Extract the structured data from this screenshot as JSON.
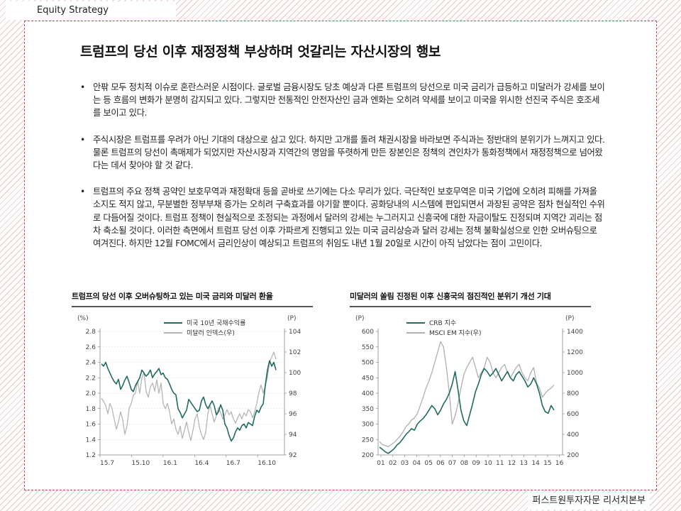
{
  "header": {
    "section": "Equity Strategy"
  },
  "footer": {
    "org": "퍼스트원투자자문 리서치본부"
  },
  "title": "트럼프의 당선 이후 재정정책 부상하며 엇갈리는 자산시장의 행보",
  "bullets": [
    "안팎 모두 정치적 이슈로 혼란스러운 시점이다. 글로벌 금융시장도 당초 예상과 다른 트럼프의 당선으로 미국 금리가 급등하고 미달러가 강세를 보이는 등 흐름의 변화가 분명히 감지되고 있다. 그렇지만 전통적인 안전자산인 금과 엔화는 오히려 약세를 보이고 미국을 위시한 선진국 주식은 호조세를 보이고 있다.",
    "주식시장은 트럼프를 우려가 아닌 기대의 대상으로 삼고 있다. 하지만 고개를 돌려 채권시장을 바라보면 주식과는 정반대의 분위기가 느껴지고 있다. 물론 트럼프의 당선이 촉매제가 되었지만 자산시장과 지역간의 명암을 뚜렷하게 만든 장본인은 정책의 견인차가 통화정책에서 재정정책으로 넘어왔다는 데서 찾아야 할 것 같다.",
    "트럼프의 주요 정책 공약인 보호무역과 재정확대 등을 곧바로 쓰기에는 다소 무리가 있다. 극단적인 보호무역은 미국 기업에 오히려 피해를 가져올 소지도 적지 않고, 무분별한 정부부채 증가는 오히려 구축효과를 야기할 뿐이다. 공화당내의 시스템에 편입되면서 과장된 공약은 점차 현실적인 수위로 다듬어질 것이다. 트럼프 정책이 현실적으로 조정되는 과정에서 달러의 강세는 누그러지고 신흥국에 대한 자금이탈도 진정되며 지역간 괴리는 점차 축소될 것이다. 이러한 측면에서 트럼프 당선 이후 가파르게 진행되고 있는 미국 금리상승과 달러 강세는 정책 불확실성으로 인한 오버슈팅으로 여겨진다. 하지만 12월 FOMC에서 금리인상이 예상되고 트럼프의 취임도 내년 1월 20일로 시간이 아직 남았다는 점이 고민이다."
  ],
  "chart_data": [
    {
      "type": "line",
      "title": "트럼프의 당선 이후 오버슈팅하고 있는 미국 금리와 미달러 환율",
      "x_ticks": [
        "15.7",
        "15.10",
        "16.1",
        "16.4",
        "16.7",
        "16.10"
      ],
      "y_left_unit": "(%)",
      "y_right_unit": "(P)",
      "y_left_ticks": [
        "1.2",
        "1.4",
        "1.6",
        "1.8",
        "2.0",
        "2.2",
        "2.4",
        "2.6",
        "2.8"
      ],
      "y_right_ticks": [
        "92",
        "94",
        "96",
        "98",
        "100",
        "102",
        "104"
      ],
      "ylim_left": [
        1.2,
        2.8
      ],
      "ylim_right": [
        92,
        104
      ],
      "grid": true,
      "legend_position": "top-center",
      "series": [
        {
          "name": "미국 10년 국채수익률",
          "axis": "left",
          "color": "#1f6b62",
          "values": [
            2.38,
            2.35,
            2.4,
            2.32,
            2.26,
            2.2,
            2.15,
            2.12,
            2.18,
            2.05,
            2.1,
            2.17,
            2.22,
            2.14,
            2.05,
            2.02,
            2.1,
            2.15,
            2.2,
            2.3,
            2.26,
            2.22,
            2.25,
            2.3,
            2.2,
            2.25,
            2.28,
            2.32,
            2.24,
            2.26,
            2.2,
            2.18,
            2.12,
            2.05,
            2.0,
            1.98,
            1.8,
            1.75,
            1.68,
            1.73,
            1.78,
            1.92,
            1.88,
            1.84,
            1.8,
            1.76,
            1.78,
            1.9,
            1.95,
            1.85,
            1.8,
            1.85,
            1.9,
            1.84,
            1.72,
            1.76,
            1.85,
            1.78,
            1.6,
            1.55,
            1.45,
            1.38,
            1.42,
            1.5,
            1.55,
            1.52,
            1.58,
            1.6,
            1.55,
            1.62,
            1.6,
            1.58,
            1.7,
            1.78,
            1.75,
            1.82,
            1.86,
            2.1,
            2.3,
            2.42,
            2.35,
            2.4,
            2.3
          ]
        },
        {
          "name": "미달러 인덱스(우)",
          "axis": "right",
          "color": "#b5b5b5",
          "values": [
            97.5,
            97.2,
            96.8,
            96.0,
            97.0,
            96.5,
            95.5,
            94.5,
            95.2,
            96.2,
            95.4,
            94.0,
            94.8,
            96.5,
            97.0,
            97.8,
            98.0,
            99.2,
            98.0,
            99.5,
            100.0,
            98.2,
            97.6,
            98.6,
            99.0,
            98.2,
            99.3,
            98.0,
            99.0,
            97.0,
            96.5,
            97.0,
            96.2,
            95.0,
            95.5,
            94.5,
            94.0,
            94.8,
            93.6,
            94.4,
            95.2,
            94.2,
            93.4,
            94.4,
            95.5,
            96.0,
            94.7,
            94.0,
            93.5,
            94.2,
            96.0,
            96.8,
            96.0,
            95.2,
            95.8,
            96.6,
            96.1,
            95.5,
            95.9,
            96.4,
            95.9,
            96.2,
            95.5,
            95.1,
            95.6,
            96.0,
            95.5,
            96.1,
            95.8,
            96.4,
            96.2,
            95.6,
            96.2,
            97.0,
            98.1,
            98.8,
            98.0,
            98.7,
            99.6,
            101.0,
            101.5,
            102.0,
            101.3
          ]
        }
      ]
    },
    {
      "type": "line",
      "title": "미달러의 쏠림 진정된 이후 신흥국의 점진적인 분위기 개선 기대",
      "x_ticks": [
        "01",
        "02",
        "03",
        "04",
        "05",
        "06",
        "07",
        "08",
        "09",
        "10",
        "11",
        "12",
        "13",
        "14",
        "15",
        "16"
      ],
      "y_left_unit": "(P)",
      "y_right_unit": "(P)",
      "y_left_ticks": [
        "200",
        "250",
        "300",
        "350",
        "400",
        "450",
        "500",
        "550",
        "600"
      ],
      "y_right_ticks": [
        "200",
        "400",
        "600",
        "800",
        "1000",
        "1200",
        "1400"
      ],
      "ylim_left": [
        200,
        600
      ],
      "ylim_right": [
        200,
        1400
      ],
      "grid": false,
      "legend_position": "top-left",
      "series": [
        {
          "name": "CRB 지수",
          "axis": "left",
          "color": "#1f6b62",
          "values": [
            225,
            218,
            210,
            205,
            212,
            220,
            232,
            240,
            252,
            265,
            275,
            285,
            280,
            300,
            310,
            318,
            330,
            345,
            360,
            350,
            330,
            345,
            365,
            380,
            400,
            430,
            470,
            410,
            345,
            310,
            295,
            330,
            365,
            405,
            430,
            460,
            480,
            470,
            455,
            465,
            480,
            460,
            440,
            455,
            470,
            450,
            440,
            460,
            470,
            455,
            440,
            420,
            430,
            450,
            430,
            400,
            360,
            340,
            335,
            360,
            345
          ]
        },
        {
          "name": "MSCI EM 지수(우)",
          "axis": "right",
          "color": "#b0b0b0",
          "values": [
            330,
            300,
            290,
            280,
            300,
            320,
            350,
            380,
            420,
            470,
            500,
            540,
            560,
            600,
            680,
            760,
            850,
            920,
            1000,
            1100,
            1200,
            1300,
            1250,
            1050,
            800,
            500,
            580,
            700,
            850,
            980,
            1050,
            1100,
            1150,
            1050,
            950,
            1000,
            1050,
            1150,
            1100,
            1000,
            950,
            1000,
            1050,
            1080,
            1000,
            950,
            1000,
            1050,
            1080,
            1000,
            950,
            920,
            1000,
            1050,
            900,
            850,
            760,
            800,
            830,
            850,
            880
          ]
        }
      ]
    }
  ]
}
